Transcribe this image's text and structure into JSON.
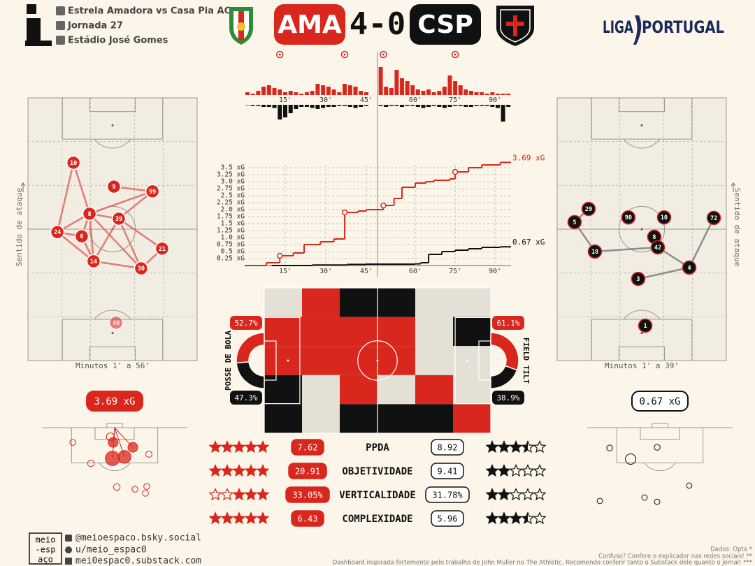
{
  "header": {
    "match": "Estrela Amadora vs Casa Pia AC",
    "round": "Jornada 27",
    "stadium": "Estádio José Gomes",
    "home": "AMA",
    "away": "CSP",
    "score": {
      "home": 4,
      "sep": "-",
      "away": 0
    },
    "league": [
      "LIGA",
      "PORTUGAL"
    ],
    "home_color": "#d9271d",
    "away_color": "#111111"
  },
  "momentum": {
    "type": "bar",
    "minutes": [
      1,
      3,
      5,
      7,
      9,
      11,
      13,
      15,
      17,
      19,
      21,
      23,
      25,
      27,
      29,
      31,
      33,
      35,
      37,
      39,
      41,
      43,
      45,
      47,
      49,
      51,
      53,
      55,
      57,
      59,
      61,
      63,
      65,
      67,
      69,
      71,
      73,
      75,
      77,
      79,
      81,
      83,
      85,
      87,
      89,
      91,
      93,
      95
    ],
    "home": [
      0.1,
      0.05,
      0.15,
      0.3,
      0.35,
      0.25,
      0.2,
      0.1,
      0.15,
      0.1,
      0.05,
      0.1,
      0.15,
      0.4,
      0.35,
      0.3,
      0.2,
      0.1,
      0.4,
      0.35,
      0.3,
      0.15,
      0.1,
      1.0,
      0.3,
      0.25,
      0.9,
      0.6,
      0.5,
      0.35,
      0.2,
      0.15,
      0.2,
      0.1,
      0.15,
      0.3,
      0.7,
      0.5,
      0.35,
      0.2,
      0.15,
      0.1,
      0.1,
      0.05,
      0.1,
      0.05,
      0.05,
      0.05
    ],
    "away": [
      0.02,
      0.05,
      0.05,
      0.1,
      0.1,
      0.15,
      0.7,
      0.6,
      0.4,
      0.2,
      0.1,
      0.1,
      0.15,
      0.2,
      0.15,
      0.1,
      0.1,
      0.05,
      0.05,
      0.1,
      0.15,
      0.1,
      0.05,
      0.05,
      0.1,
      0.05,
      0.05,
      0.1,
      0.05,
      0.05,
      0.1,
      0.15,
      0.1,
      0.05,
      0.1,
      0.15,
      0.1,
      0.05,
      0.05,
      0.1,
      0.1,
      0.05,
      0.05,
      0.05,
      0.1,
      0.15,
      0.8,
      0.1
    ],
    "goals": [
      13,
      37,
      48,
      75
    ]
  },
  "xg": {
    "type": "line",
    "xlim": [
      0,
      96
    ],
    "ylim": [
      0,
      3.6
    ],
    "halftime": 45,
    "xticks": [
      {
        "value": 15,
        "label": "15'"
      },
      {
        "value": 30,
        "label": "30'"
      },
      {
        "value": 45,
        "label": "45'"
      },
      {
        "value": 60,
        "label": "60'"
      },
      {
        "value": 75,
        "label": "75'"
      },
      {
        "value": 90,
        "label": "90'"
      }
    ],
    "yticks": [
      {
        "value": 0.25,
        "label": "0.25 xG"
      },
      {
        "value": 0.5,
        "label": "0.5 xG"
      },
      {
        "value": 0.75,
        "label": "0.75 xG"
      },
      {
        "value": 1.0,
        "label": "1.0 xG"
      },
      {
        "value": 1.25,
        "label": "1.25 xG"
      },
      {
        "value": 1.5,
        "label": "1.5 xG"
      },
      {
        "value": 1.75,
        "label": "1.75 xG"
      },
      {
        "value": 2.0,
        "label": "2.0 xG"
      },
      {
        "value": 2.25,
        "label": "2.25 xG"
      },
      {
        "value": 2.5,
        "label": "2.5 xG"
      },
      {
        "value": 2.75,
        "label": "2.75 xG"
      },
      {
        "value": 3.0,
        "label": "3.0 xG"
      },
      {
        "value": 3.25,
        "label": "3.25 xG"
      },
      {
        "value": 3.5,
        "label": "3.5 xG"
      }
    ],
    "series": [
      {
        "color": "#d9271d",
        "x": [
          0,
          8,
          13,
          18,
          22,
          28,
          33,
          37,
          42,
          45,
          48,
          52,
          55,
          60,
          64,
          67,
          73,
          75,
          80,
          85,
          92
        ],
        "values": [
          0,
          0.1,
          0.35,
          0.45,
          0.75,
          0.85,
          0.95,
          1.9,
          1.95,
          2.0,
          2.15,
          2.4,
          2.8,
          2.95,
          3.0,
          3.05,
          3.1,
          3.35,
          3.5,
          3.6,
          3.69
        ],
        "total": 3.69,
        "total_label": "3.69 xG"
      },
      {
        "color": "#111111",
        "x": [
          10,
          25,
          38,
          45,
          60,
          62,
          65,
          70,
          75,
          80,
          85,
          92
        ],
        "values": [
          0,
          0.02,
          0.04,
          0.05,
          0.06,
          0.1,
          0.4,
          0.5,
          0.55,
          0.6,
          0.65,
          0.67
        ],
        "total": 0.67,
        "total_label": "0.67 xG"
      }
    ]
  },
  "attack_label": "Sentido de ataque",
  "networks": [
    {
      "caption": "Minutos 1' a 56'",
      "color": "#d9271d",
      "stroke": "#ffffff",
      "link_color": "#e0625a",
      "players": [
        {
          "number": 10,
          "x": 26.9,
          "y": 75.3
        },
        {
          "number": 9,
          "x": 50.8,
          "y": 66.2
        },
        {
          "number": 99,
          "x": 73.6,
          "y": 64.4
        },
        {
          "number": 8,
          "x": 36.4,
          "y": 55.9
        },
        {
          "number": 39,
          "x": 53.7,
          "y": 54.0
        },
        {
          "number": 24,
          "x": 17.4,
          "y": 48.9
        },
        {
          "number": 6,
          "x": 31.8,
          "y": 47.3
        },
        {
          "number": 21,
          "x": 79.3,
          "y": 42.6
        },
        {
          "number": 14,
          "x": 38.8,
          "y": 37.8
        },
        {
          "number": 30,
          "x": 66.9,
          "y": 35.1
        },
        {
          "number": 40,
          "x": 52.1,
          "y": 14.4,
          "sub": true
        }
      ],
      "edges": [
        [
          10,
          24
        ],
        [
          10,
          8
        ],
        [
          9,
          99
        ],
        [
          99,
          8
        ],
        [
          99,
          39
        ],
        [
          8,
          39
        ],
        [
          8,
          24
        ],
        [
          8,
          6
        ],
        [
          8,
          14
        ],
        [
          24,
          6
        ],
        [
          24,
          14
        ],
        [
          39,
          21
        ],
        [
          39,
          30
        ],
        [
          39,
          14
        ],
        [
          6,
          14
        ],
        [
          14,
          30
        ],
        [
          30,
          21
        ],
        [
          8,
          30
        ]
      ]
    },
    {
      "caption": "Minutos 1' a 39'",
      "color": "#111111",
      "stroke": "#d9271d",
      "link_color": "#777777",
      "players": [
        {
          "number": 29,
          "x": 18.6,
          "y": 57.7
        },
        {
          "number": 5,
          "x": 10.3,
          "y": 52.7
        },
        {
          "number": 90,
          "x": 42.1,
          "y": 54.5
        },
        {
          "number": 10,
          "x": 63.2,
          "y": 54.5
        },
        {
          "number": 72,
          "x": 92.6,
          "y": 54.3
        },
        {
          "number": 8,
          "x": 57.4,
          "y": 47.1
        },
        {
          "number": 42,
          "x": 59.5,
          "y": 43.1
        },
        {
          "number": 18,
          "x": 22.3,
          "y": 41.5
        },
        {
          "number": 4,
          "x": 78.1,
          "y": 35.4
        },
        {
          "number": 3,
          "x": 47.9,
          "y": 31.1
        },
        {
          "number": 1,
          "x": 52.1,
          "y": 13.3
        }
      ],
      "edges": [
        [
          29,
          5
        ],
        [
          5,
          18
        ],
        [
          18,
          42
        ],
        [
          72,
          4
        ],
        [
          4,
          42
        ],
        [
          4,
          3
        ],
        [
          8,
          42
        ]
      ]
    }
  ],
  "territory": {
    "palette": {
      "R": "#d9271d",
      "B": "#111111",
      "L": "#e4e0d5"
    },
    "rows": [
      [
        "L",
        "R",
        "B",
        "B",
        "L",
        "L"
      ],
      [
        "R",
        "R",
        "R",
        "R",
        "L",
        "B"
      ],
      [
        "R",
        "R",
        "R",
        "R",
        "L",
        "L"
      ],
      [
        "B",
        "L",
        "R",
        "L",
        "R",
        "L"
      ],
      [
        "B",
        "L",
        "B",
        "B",
        "B",
        "R"
      ]
    ]
  },
  "possession": {
    "label": "POSSE DE BOLA",
    "home": 52.7,
    "away": 47.3,
    "home_label": "52.7%",
    "away_label": "47.3%"
  },
  "field_tilt": {
    "label": "FIELD TILT",
    "home": 61.1,
    "away": 38.9,
    "home_label": "61.1%",
    "away_label": "38.9%"
  },
  "shotmaps": [
    {
      "color": "#d9271d",
      "shots": [
        {
          "x": 33.0,
          "y": 14.4,
          "xg": 0.6,
          "goal": true
        },
        {
          "x": 38.6,
          "y": 13.7,
          "xg": 0.45,
          "goal": true
        },
        {
          "x": 42.5,
          "y": 9.2,
          "xg": 0.2,
          "goal": true
        },
        {
          "x": 33.3,
          "y": 6.9,
          "xg": 0.2,
          "goal": true
        },
        {
          "x": 32.0,
          "y": 4.3,
          "xg": 0.1,
          "goal": false
        },
        {
          "x": 14.4,
          "y": 6.9,
          "xg": 0.03,
          "goal": false
        },
        {
          "x": 22.9,
          "y": 16.7,
          "xg": 0.05,
          "goal": false
        },
        {
          "x": 50.0,
          "y": 12.4,
          "xg": 0.04,
          "goal": false
        },
        {
          "x": 35.0,
          "y": 27.8,
          "xg": 0.05,
          "goal": false
        },
        {
          "x": 43.5,
          "y": 28.8,
          "xg": 0.03,
          "goal": false
        },
        {
          "x": 49.0,
          "y": 27.5,
          "xg": 0.03,
          "goal": false
        },
        {
          "x": 48.4,
          "y": 30.7,
          "xg": 0.03,
          "goal": false
        }
      ]
    },
    {
      "color": "#111111",
      "shots": [
        {
          "x": 20.3,
          "y": 14.7,
          "xg": 0.25,
          "goal": false
        },
        {
          "x": 10.5,
          "y": 9.5,
          "xg": 0.03,
          "goal": false
        },
        {
          "x": 32.7,
          "y": 9.2,
          "xg": 0.03,
          "goal": false
        },
        {
          "x": 47.7,
          "y": 27.1,
          "xg": 0.02,
          "goal": false
        },
        {
          "x": 5.9,
          "y": 34.3,
          "xg": 0.02,
          "goal": false
        },
        {
          "x": 26.8,
          "y": 32.7,
          "xg": 0.02,
          "goal": false
        },
        {
          "x": 32.7,
          "y": 34.7,
          "xg": 0.02,
          "goal": false
        }
      ]
    }
  ],
  "stats": {
    "rows": [
      {
        "label": "PPDA",
        "home": 7.62,
        "away": 8.92,
        "home_stars": 5,
        "away_stars": 3.5
      },
      {
        "label": "OBJETIVIDADE",
        "home": 20.91,
        "away": 9.41,
        "home_stars": 5,
        "away_stars": 2
      },
      {
        "label": "VERTICALIDADE",
        "home": 33.05,
        "away": 31.78,
        "home_label": "33.05%",
        "away_label": "31.78%",
        "home_stars": 3,
        "away_stars": 2
      },
      {
        "label": "COMPLEXIDADE",
        "home": 6.43,
        "away": 5.96,
        "home_stars": 5,
        "away_stars": 3.5
      }
    ]
  },
  "footer": {
    "brand": [
      "meio",
      "-esp",
      "aço"
    ],
    "social": [
      "@meioespaco.bsky.social",
      "u/meio_espac0",
      "mei0espac0.substack.com"
    ],
    "notes": [
      "Dados: Opta *",
      "Confuso? Confere o explicador nas redes sociais! **",
      "Dashboard inspirada fortemente pelo trabalho de John Muller no The Athletic. Recomendo conferir tanto o Substack dele quanto o jornal! ***"
    ]
  }
}
